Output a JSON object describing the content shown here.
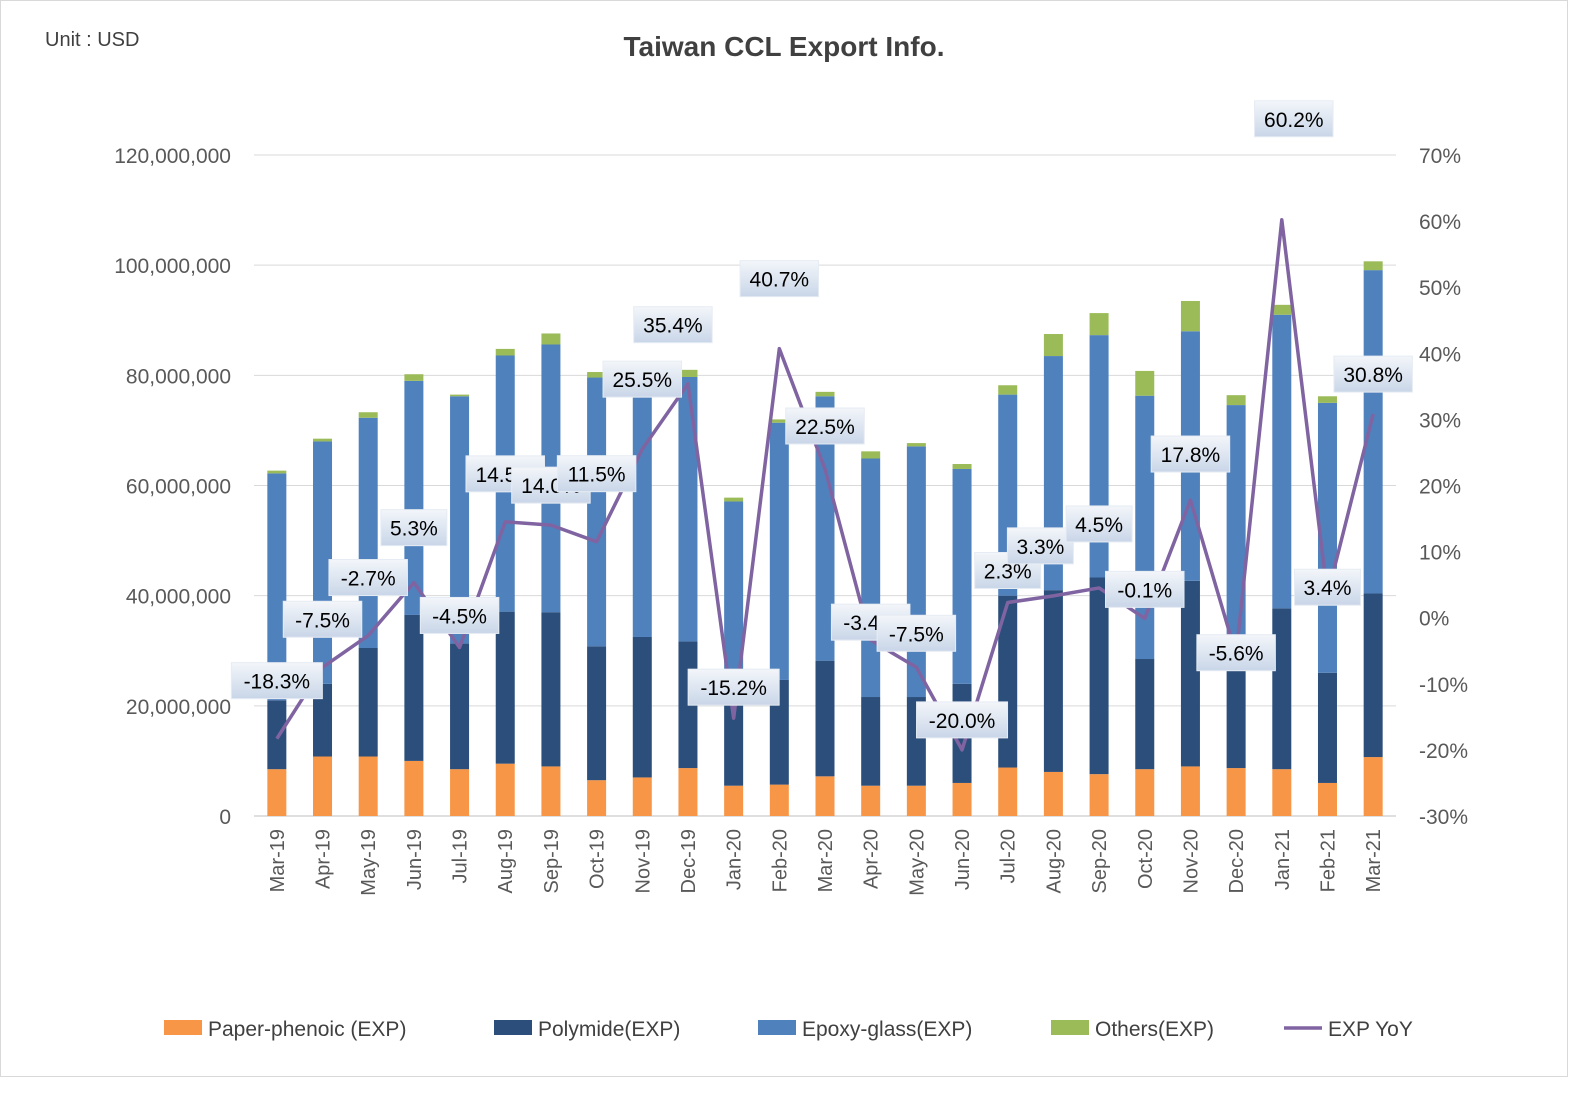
{
  "chart_data": {
    "type": "bar",
    "title": "Taiwan CCL Export Info.",
    "unit_label": "Unit : USD",
    "categories": [
      "Mar-19",
      "Apr-19",
      "May-19",
      "Jun-19",
      "Jul-19",
      "Aug-19",
      "Sep-19",
      "Oct-19",
      "Nov-19",
      "Dec-19",
      "Jan-20",
      "Feb-20",
      "Mar-20",
      "Apr-20",
      "May-20",
      "Jun-20",
      "Jul-20",
      "Aug-20",
      "Sep-20",
      "Oct-20",
      "Nov-20",
      "Dec-20",
      "Jan-21",
      "Feb-21",
      "Mar-21"
    ],
    "stacked": true,
    "series": [
      {
        "name": "Paper-phenoic (EXP)",
        "color": "#f79646",
        "values": [
          8500000,
          10800000,
          10800000,
          10000000,
          8500000,
          9500000,
          9000000,
          6500000,
          7000000,
          8700000,
          5500000,
          5700000,
          7200000,
          5500000,
          5500000,
          6000000,
          8800000,
          8000000,
          7600000,
          8500000,
          9000000,
          8700000,
          8500000,
          6000000,
          10700000
        ]
      },
      {
        "name": "Polymide(EXP)",
        "color": "#2c4e7b",
        "values": [
          12500000,
          13200000,
          19700000,
          26500000,
          22800000,
          27600000,
          28000000,
          24300000,
          25500000,
          23000000,
          16600000,
          19000000,
          21000000,
          16100000,
          16100000,
          18000000,
          31200000,
          33000000,
          35700000,
          20000000,
          33700000,
          22100000,
          29200000,
          20000000,
          29700000
        ]
      },
      {
        "name": "Epoxy-glass(EXP)",
        "color": "#4f81bd",
        "values": [
          41200000,
          44000000,
          41800000,
          42500000,
          44900000,
          46500000,
          48600000,
          48800000,
          45600000,
          48000000,
          35000000,
          46700000,
          48000000,
          43300000,
          45500000,
          39000000,
          36500000,
          42500000,
          44000000,
          47800000,
          45300000,
          43800000,
          53300000,
          49000000,
          58700000
        ]
      },
      {
        "name": "Others(EXP)",
        "color": "#9bbb59",
        "values": [
          500000,
          500000,
          1000000,
          1200000,
          300000,
          1200000,
          2000000,
          1000000,
          500000,
          1300000,
          700000,
          600000,
          800000,
          1300000,
          600000,
          900000,
          1700000,
          4000000,
          4000000,
          4500000,
          5500000,
          1800000,
          1800000,
          1200000,
          1600000
        ]
      }
    ],
    "line_series": {
      "name": "EXP YoY",
      "color": "#8064a2",
      "values": [
        -18.3,
        -7.5,
        -2.7,
        5.3,
        -4.5,
        14.5,
        14.0,
        11.5,
        25.5,
        35.4,
        -15.2,
        40.7,
        22.5,
        -3.4,
        -7.5,
        -20.0,
        2.3,
        3.3,
        4.5,
        -0.1,
        17.8,
        -5.6,
        60.2,
        3.4,
        30.8
      ]
    },
    "line_labels": [
      "-18.3%",
      "-7.5%",
      "-2.7%",
      "5.3%",
      "-4.5%",
      "14.5%",
      "14.0%",
      "11.5%",
      "25.5%",
      "35.4%",
      "-15.2%",
      "40.7%",
      "22.5%",
      "-3.4%",
      "-7.5%",
      "-20.0%",
      "2.3%",
      "3.3%",
      "4.5%",
      "-0.1%",
      "17.8%",
      "-5.6%",
      "60.2%",
      "3.4%",
      "30.8%"
    ],
    "y_left": {
      "min": 0,
      "max": 120000000,
      "ticks": [
        "0",
        "20,000,000",
        "40,000,000",
        "60,000,000",
        "80,000,000",
        "100,000,000",
        "120,000,000"
      ]
    },
    "y_right": {
      "min": -30,
      "max": 70,
      "ticks": [
        "-30%",
        "-20%",
        "-10%",
        "0%",
        "10%",
        "20%",
        "30%",
        "40%",
        "50%",
        "60%",
        "70%"
      ]
    },
    "grid": true,
    "legend_position": "bottom"
  }
}
